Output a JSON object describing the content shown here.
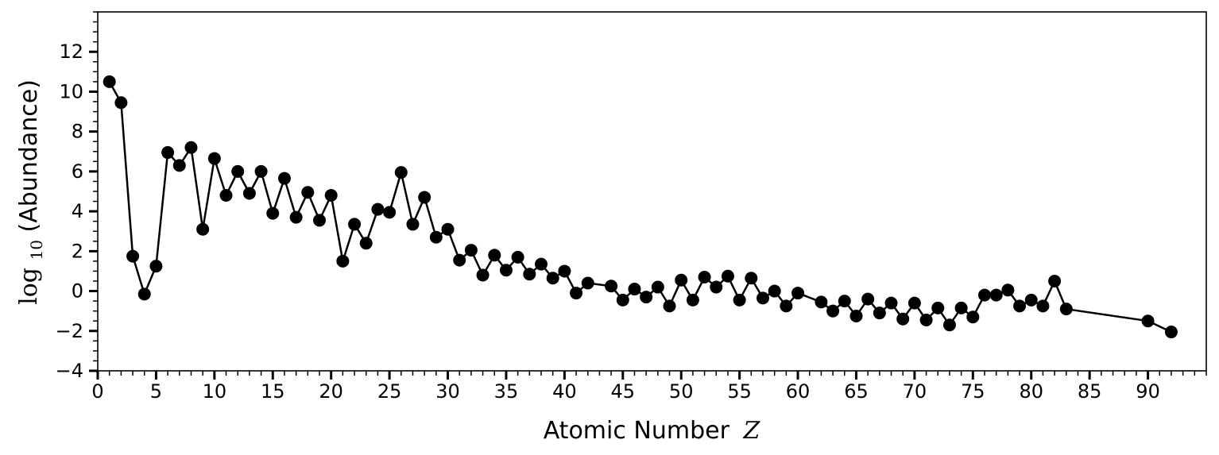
{
  "chart_data": {
    "type": "line",
    "xlabel": "Atomic Number",
    "xlabel_symbol": "Z",
    "ylabel_prefix": "log",
    "ylabel_subscript": "10",
    "ylabel_rest": "(Abundance)",
    "xlim": [
      0,
      95
    ],
    "ylim": [
      -4,
      14
    ],
    "x_ticks": [
      0,
      5,
      10,
      15,
      20,
      25,
      30,
      35,
      40,
      45,
      50,
      55,
      60,
      65,
      70,
      75,
      80,
      85,
      90
    ],
    "x_minor_step": 1,
    "y_ticks": [
      -4,
      -2,
      0,
      2,
      4,
      6,
      8,
      10,
      12
    ],
    "y_minor_step": 0.5,
    "grid": false,
    "line_color": "#000000",
    "marker_color": "#000000",
    "series": [
      {
        "x": [
          1,
          2,
          3,
          4,
          5,
          6,
          7,
          8,
          9,
          10,
          11,
          12,
          13,
          14,
          15,
          16,
          17,
          18,
          19,
          20,
          21,
          22,
          23,
          24,
          25,
          26,
          27,
          28,
          29,
          30,
          31,
          32,
          33,
          34,
          35,
          36,
          37,
          38,
          39,
          40,
          41,
          42,
          44,
          45,
          46,
          47,
          48,
          49,
          50,
          51,
          52,
          53,
          54,
          55,
          56,
          57,
          58,
          59,
          60,
          62,
          63,
          64,
          65,
          66,
          67,
          68,
          69,
          70,
          71,
          72,
          73,
          74,
          75,
          76,
          77,
          78,
          79,
          80,
          81,
          82,
          83,
          90,
          92
        ],
        "y": [
          10.5,
          9.45,
          1.75,
          -0.15,
          1.25,
          6.95,
          6.3,
          7.2,
          3.1,
          6.65,
          4.8,
          6.0,
          4.9,
          6.0,
          3.9,
          5.65,
          3.7,
          4.95,
          3.55,
          4.8,
          1.5,
          3.35,
          2.4,
          4.1,
          3.95,
          5.95,
          3.35,
          4.7,
          2.7,
          3.1,
          1.55,
          2.05,
          0.8,
          1.8,
          1.05,
          1.7,
          0.85,
          1.35,
          0.65,
          1.0,
          -0.1,
          0.4,
          0.25,
          -0.45,
          0.1,
          -0.3,
          0.2,
          -0.75,
          0.55,
          -0.45,
          0.7,
          0.2,
          0.75,
          -0.45,
          0.65,
          -0.35,
          0.0,
          -0.75,
          -0.1,
          -0.55,
          -1.0,
          -0.5,
          -1.25,
          -0.4,
          -1.1,
          -0.6,
          -1.4,
          -0.6,
          -1.45,
          -0.85,
          -1.7,
          -0.85,
          -1.3,
          -0.2,
          -0.2,
          0.05,
          -0.75,
          -0.45,
          -0.75,
          0.5,
          -0.9,
          -1.5,
          -2.05
        ]
      }
    ]
  }
}
